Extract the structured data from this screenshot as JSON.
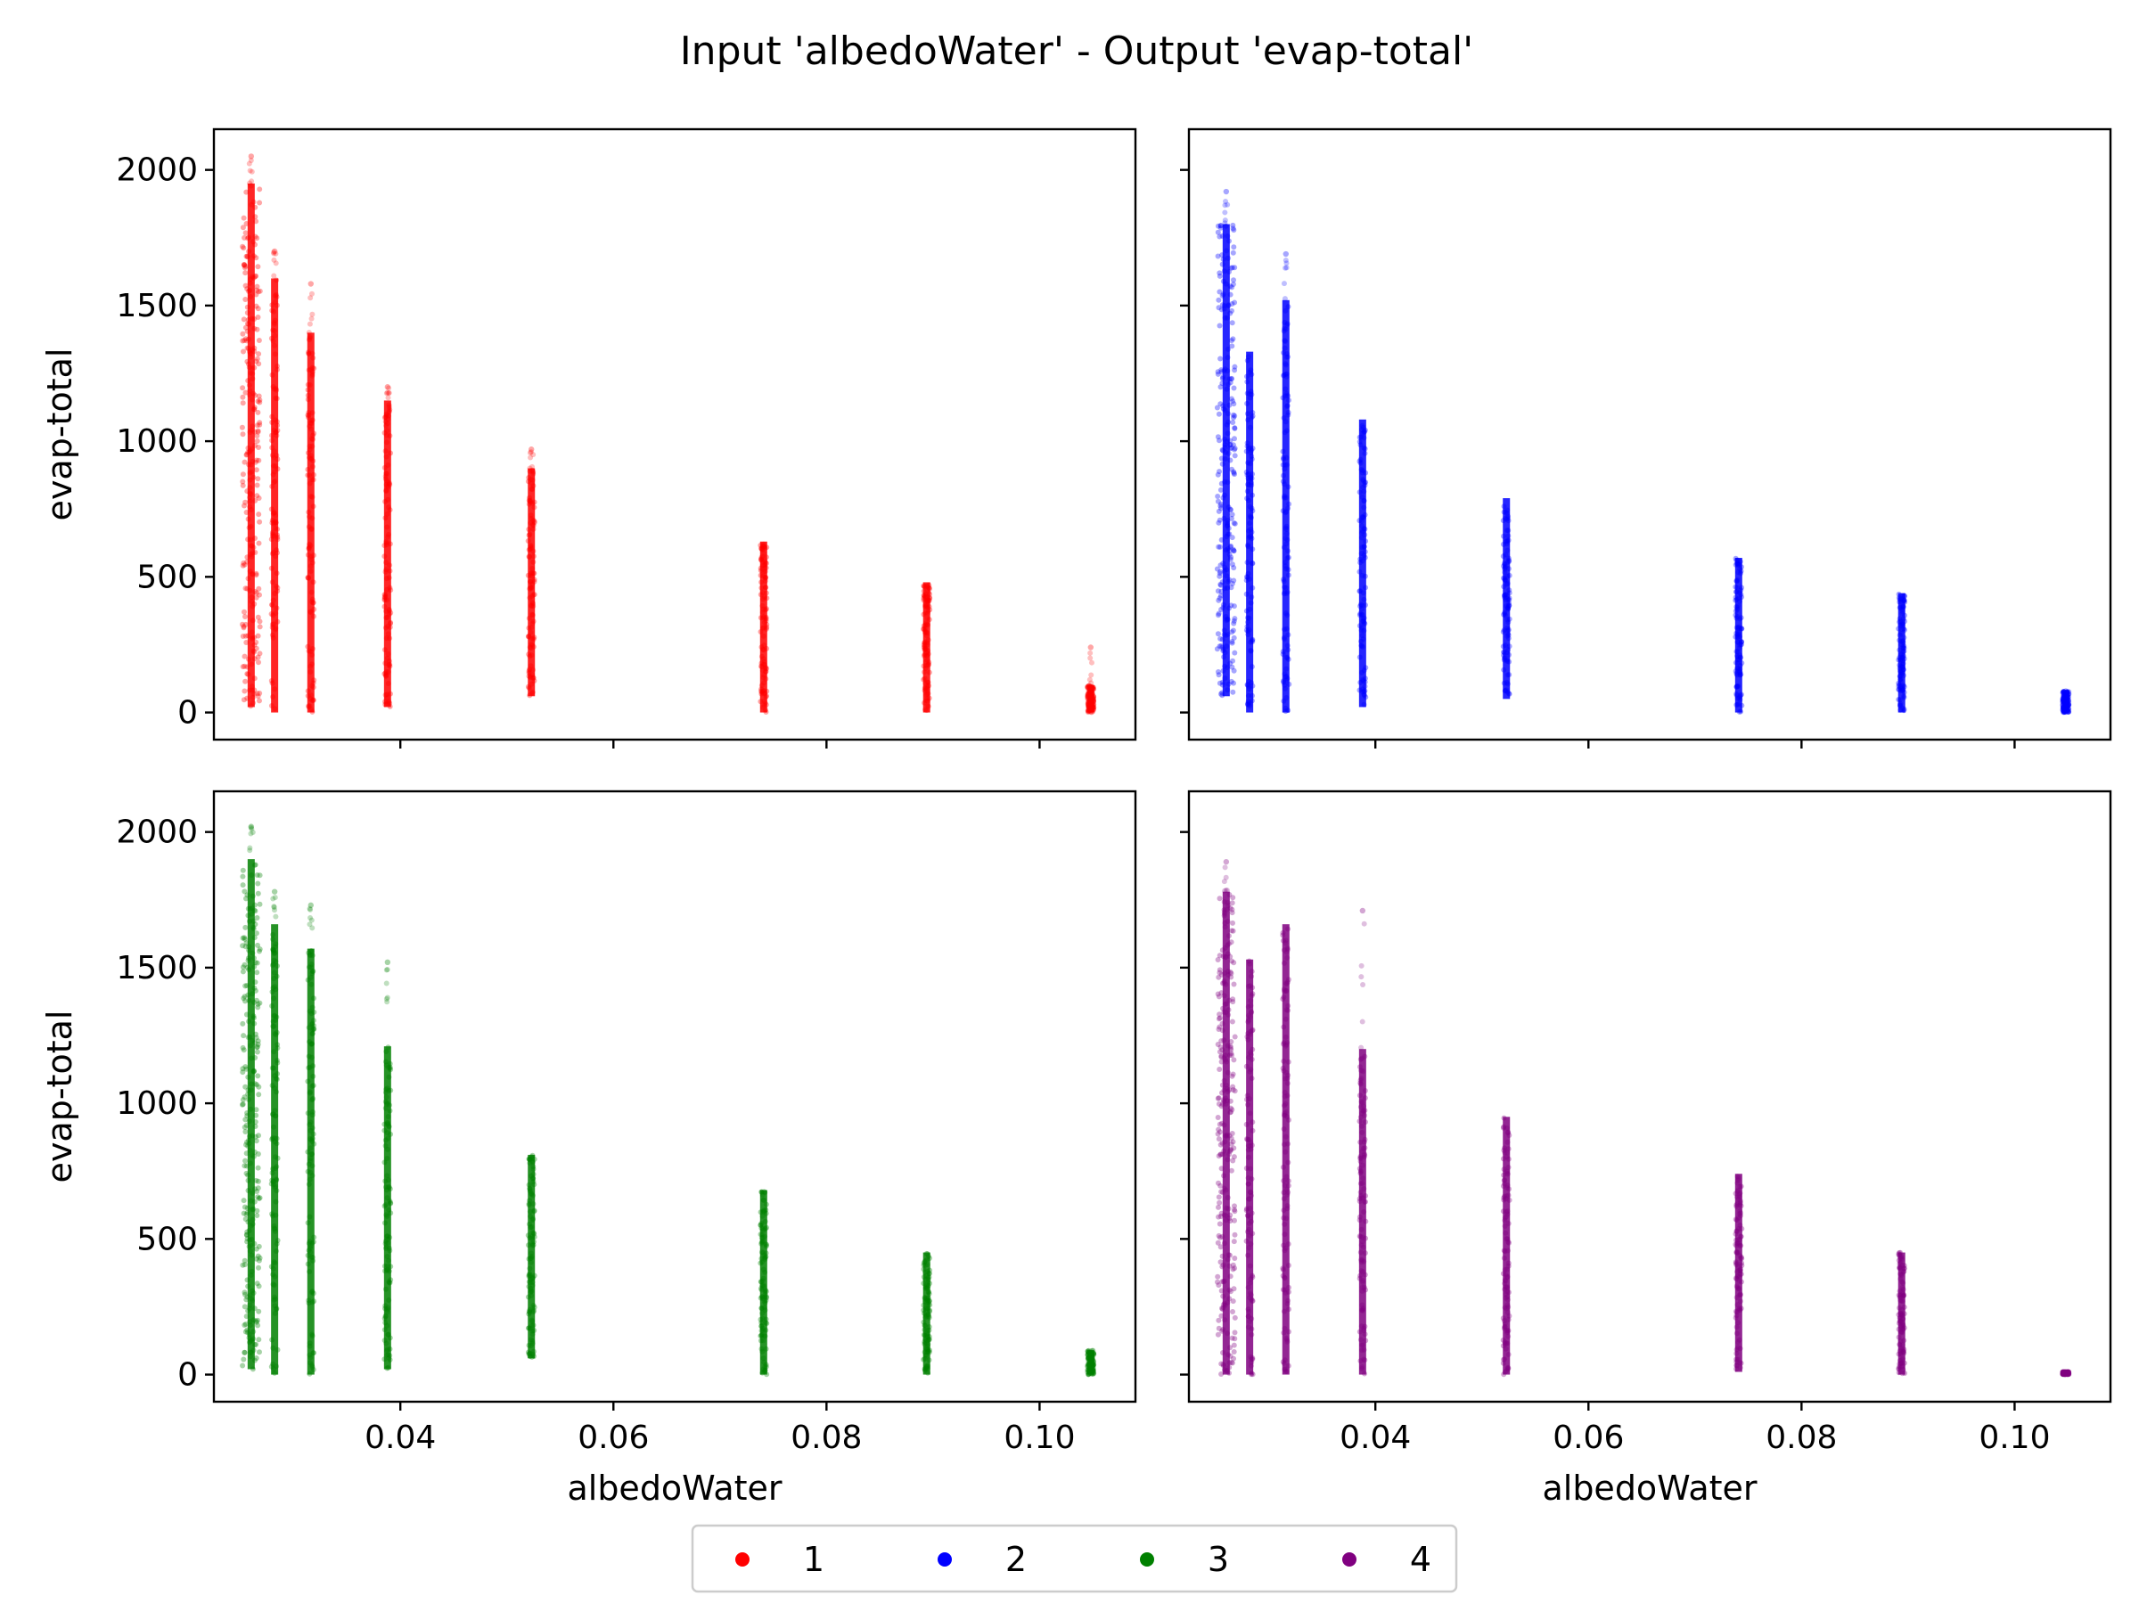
{
  "figure": {
    "title": "Input 'albedoWater' - Output 'evap-total'"
  },
  "legend": [
    {
      "label": "1",
      "color": "#ff0000"
    },
    {
      "label": "2",
      "color": "#0000ff"
    },
    {
      "label": "3",
      "color": "#008000"
    },
    {
      "label": "4",
      "color": "#800080"
    }
  ],
  "chart_data": [
    {
      "type": "scatter",
      "series_name": "1",
      "color": "#ff0000",
      "xlabel": "",
      "ylabel": "evap-total",
      "xlim": [
        0.0225,
        0.109
      ],
      "ylim": [
        -100,
        2150
      ],
      "xticks": [
        0.04,
        0.06,
        0.08,
        0.1
      ],
      "xticklabels": [],
      "yticks": [
        0,
        500,
        1000,
        1500,
        2000
      ],
      "yticklabels": [
        "0",
        "500",
        "1000",
        "1500",
        "2000"
      ],
      "columns": [
        {
          "x": 0.026,
          "min": 20,
          "max": 1950,
          "outlier": 2050
        },
        {
          "x": 0.0282,
          "min": 0,
          "max": 1600,
          "outlier": 1700
        },
        {
          "x": 0.0316,
          "min": 0,
          "max": 1400,
          "outlier": 1580
        },
        {
          "x": 0.0388,
          "min": 20,
          "max": 1150,
          "outlier": 1200
        },
        {
          "x": 0.0523,
          "min": 60,
          "max": 900,
          "outlier": 970
        },
        {
          "x": 0.0741,
          "min": 0,
          "max": 630
        },
        {
          "x": 0.0894,
          "min": 0,
          "max": 480
        },
        {
          "x": 0.1048,
          "min": 0,
          "max": 100,
          "outlier": 240
        }
      ]
    },
    {
      "type": "scatter",
      "series_name": "2",
      "color": "#0000ff",
      "xlabel": "",
      "ylabel": "",
      "xlim": [
        0.0225,
        0.109
      ],
      "ylim": [
        -100,
        2150
      ],
      "xticks": [
        0.04,
        0.06,
        0.08,
        0.1
      ],
      "xticklabels": [],
      "yticks": [
        0,
        500,
        1000,
        1500,
        2000
      ],
      "yticklabels": [],
      "columns": [
        {
          "x": 0.026,
          "min": 60,
          "max": 1800,
          "outlier": 1920
        },
        {
          "x": 0.0282,
          "min": 0,
          "max": 1330
        },
        {
          "x": 0.0316,
          "min": 0,
          "max": 1520,
          "outlier": 1690
        },
        {
          "x": 0.0388,
          "min": 20,
          "max": 1080
        },
        {
          "x": 0.0523,
          "min": 50,
          "max": 790
        },
        {
          "x": 0.0741,
          "min": 0,
          "max": 570
        },
        {
          "x": 0.0894,
          "min": 0,
          "max": 440
        },
        {
          "x": 0.1048,
          "min": 0,
          "max": 80
        }
      ]
    },
    {
      "type": "scatter",
      "series_name": "3",
      "color": "#008000",
      "xlabel": "albedoWater",
      "ylabel": "evap-total",
      "xlim": [
        0.0225,
        0.109
      ],
      "ylim": [
        -100,
        2150
      ],
      "xticks": [
        0.04,
        0.06,
        0.08,
        0.1
      ],
      "xticklabels": [
        "0.04",
        "0.06",
        "0.08",
        "0.10"
      ],
      "yticks": [
        0,
        500,
        1000,
        1500,
        2000
      ],
      "yticklabels": [
        "0",
        "500",
        "1000",
        "1500",
        "2000"
      ],
      "columns": [
        {
          "x": 0.026,
          "min": 20,
          "max": 1900,
          "outlier": 2020
        },
        {
          "x": 0.0282,
          "min": 0,
          "max": 1660,
          "outlier": 1780
        },
        {
          "x": 0.0316,
          "min": 0,
          "max": 1570,
          "outlier": 1730
        },
        {
          "x": 0.0388,
          "min": 20,
          "max": 1210,
          "outlier": 1520
        },
        {
          "x": 0.0523,
          "min": 60,
          "max": 810
        },
        {
          "x": 0.0741,
          "min": 0,
          "max": 680
        },
        {
          "x": 0.0894,
          "min": 0,
          "max": 450
        },
        {
          "x": 0.1048,
          "min": 0,
          "max": 90
        }
      ]
    },
    {
      "type": "scatter",
      "series_name": "4",
      "color": "#800080",
      "xlabel": "albedoWater",
      "ylabel": "",
      "xlim": [
        0.0225,
        0.109
      ],
      "ylim": [
        -100,
        2150
      ],
      "xticks": [
        0.04,
        0.06,
        0.08,
        0.1
      ],
      "xticklabels": [
        "0.04",
        "0.06",
        "0.08",
        "0.10"
      ],
      "yticks": [
        0,
        500,
        1000,
        1500,
        2000
      ],
      "yticklabels": [],
      "columns": [
        {
          "x": 0.026,
          "min": 0,
          "max": 1780,
          "outlier": 1890
        },
        {
          "x": 0.0282,
          "min": 0,
          "max": 1530
        },
        {
          "x": 0.0316,
          "min": 0,
          "max": 1660
        },
        {
          "x": 0.0388,
          "min": 0,
          "max": 1200,
          "outlier": 1710
        },
        {
          "x": 0.0523,
          "min": 0,
          "max": 950
        },
        {
          "x": 0.0741,
          "min": 10,
          "max": 740
        },
        {
          "x": 0.0894,
          "min": 0,
          "max": 450
        },
        {
          "x": 0.1048,
          "min": 0,
          "max": 10
        }
      ]
    }
  ]
}
